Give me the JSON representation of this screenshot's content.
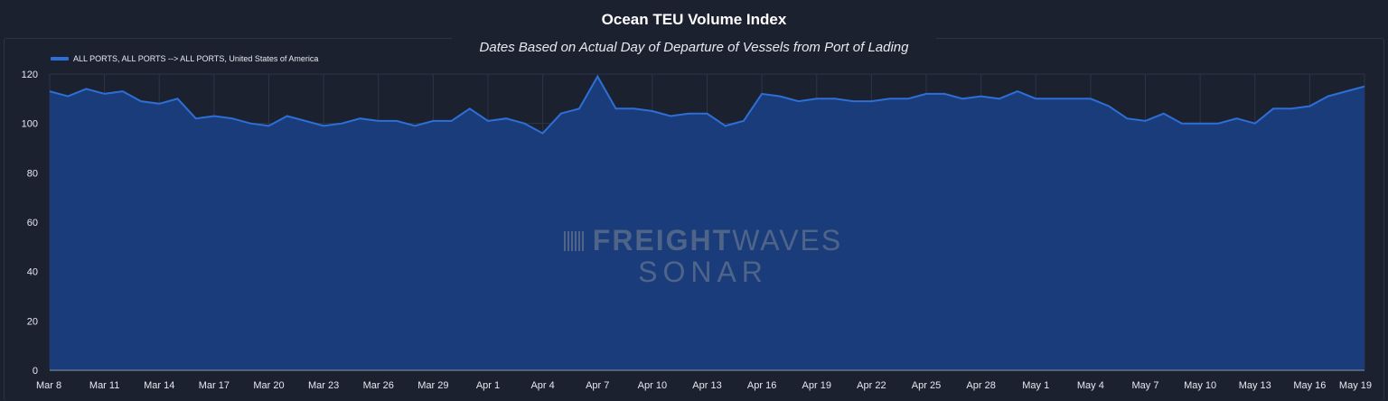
{
  "chart_data": {
    "type": "area",
    "title": "Ocean TEU Volume Index",
    "subtitle": "Dates Based on Actual Day of Departure of Vessels from Port of Lading",
    "legend_position": "top-left",
    "grid": true,
    "ylim": [
      0,
      120
    ],
    "yticks": [
      0,
      20,
      40,
      60,
      80,
      100,
      120
    ],
    "x_tick_labels": [
      "Mar 8",
      "Mar 11",
      "Mar 14",
      "Mar 17",
      "Mar 20",
      "Mar 23",
      "Mar 26",
      "Mar 29",
      "Apr 1",
      "Apr 4",
      "Apr 7",
      "Apr 10",
      "Apr 13",
      "Apr 16",
      "Apr 19",
      "Apr 22",
      "Apr 25",
      "Apr 28",
      "May 1",
      "May 4",
      "May 7",
      "May 10",
      "May 13",
      "May 16",
      "May 19"
    ],
    "series": [
      {
        "name": "ALL PORTS, ALL PORTS --> ALL PORTS, United States of America",
        "color": "#2d6fd6",
        "values": [
          113,
          111,
          114,
          112,
          113,
          109,
          108,
          110,
          102,
          103,
          102,
          100,
          99,
          103,
          101,
          99,
          100,
          102,
          101,
          101,
          99,
          101,
          101,
          106,
          101,
          102,
          100,
          96,
          104,
          106,
          119,
          106,
          106,
          105,
          103,
          104,
          104,
          99,
          101,
          112,
          111,
          109,
          110,
          110,
          109,
          109,
          110,
          110,
          112,
          112,
          110,
          111,
          110,
          113,
          110,
          110,
          110,
          110,
          107,
          102,
          101,
          104,
          100,
          100,
          100,
          102,
          100,
          106,
          106,
          107,
          111,
          113,
          115
        ]
      }
    ]
  },
  "watermark": {
    "brand_bold": "FREIGHT",
    "brand_light": "WAVES",
    "product": "SONAR"
  }
}
